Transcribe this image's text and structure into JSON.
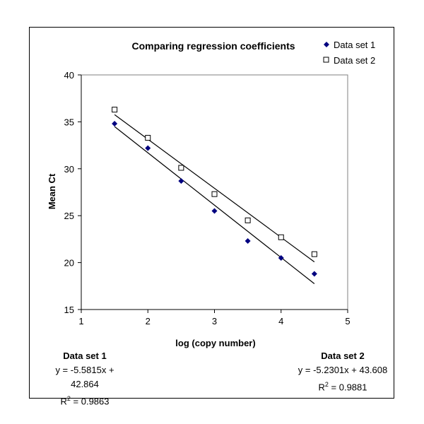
{
  "chart_data": {
    "type": "scatter",
    "title": "Comparing regression coefficients",
    "xlabel": "log (copy number)",
    "ylabel": "Mean Ct",
    "xlim": [
      1,
      5
    ],
    "ylim": [
      15,
      40
    ],
    "xticks": [
      "1",
      "2",
      "3",
      "4",
      "5"
    ],
    "yticks": [
      "15",
      "20",
      "25",
      "30",
      "35",
      "40"
    ],
    "grid": false,
    "legend_position": "top-right",
    "series": [
      {
        "name": "Data set 1",
        "marker": "filled-diamond",
        "color": "#000080",
        "x": [
          1.5,
          2.0,
          2.5,
          3.0,
          3.5,
          4.0,
          4.5
        ],
        "y": [
          34.8,
          32.2,
          28.7,
          25.5,
          22.3,
          20.5,
          18.8
        ],
        "trendline": {
          "slope": -5.5815,
          "intercept": 42.864
        }
      },
      {
        "name": "Data set 2",
        "marker": "open-square",
        "color": "#000000",
        "x": [
          1.5,
          2.0,
          2.5,
          3.0,
          3.5,
          4.0,
          4.5
        ],
        "y": [
          36.3,
          33.3,
          30.1,
          27.3,
          24.5,
          22.7,
          20.9
        ],
        "trendline": {
          "slope": -5.2301,
          "intercept": 43.608
        }
      }
    ]
  },
  "equations": [
    {
      "title": "Data set 1",
      "equation": "y = -5.5815x + 42.864",
      "r2_label": "R",
      "r2_sup": "2",
      "r2_value": " = 0.9863"
    },
    {
      "title": "Data set 2",
      "equation": "y = -5.2301x + 43.608",
      "r2_label": "R",
      "r2_sup": "2",
      "r2_value": " = 0.9881"
    }
  ]
}
